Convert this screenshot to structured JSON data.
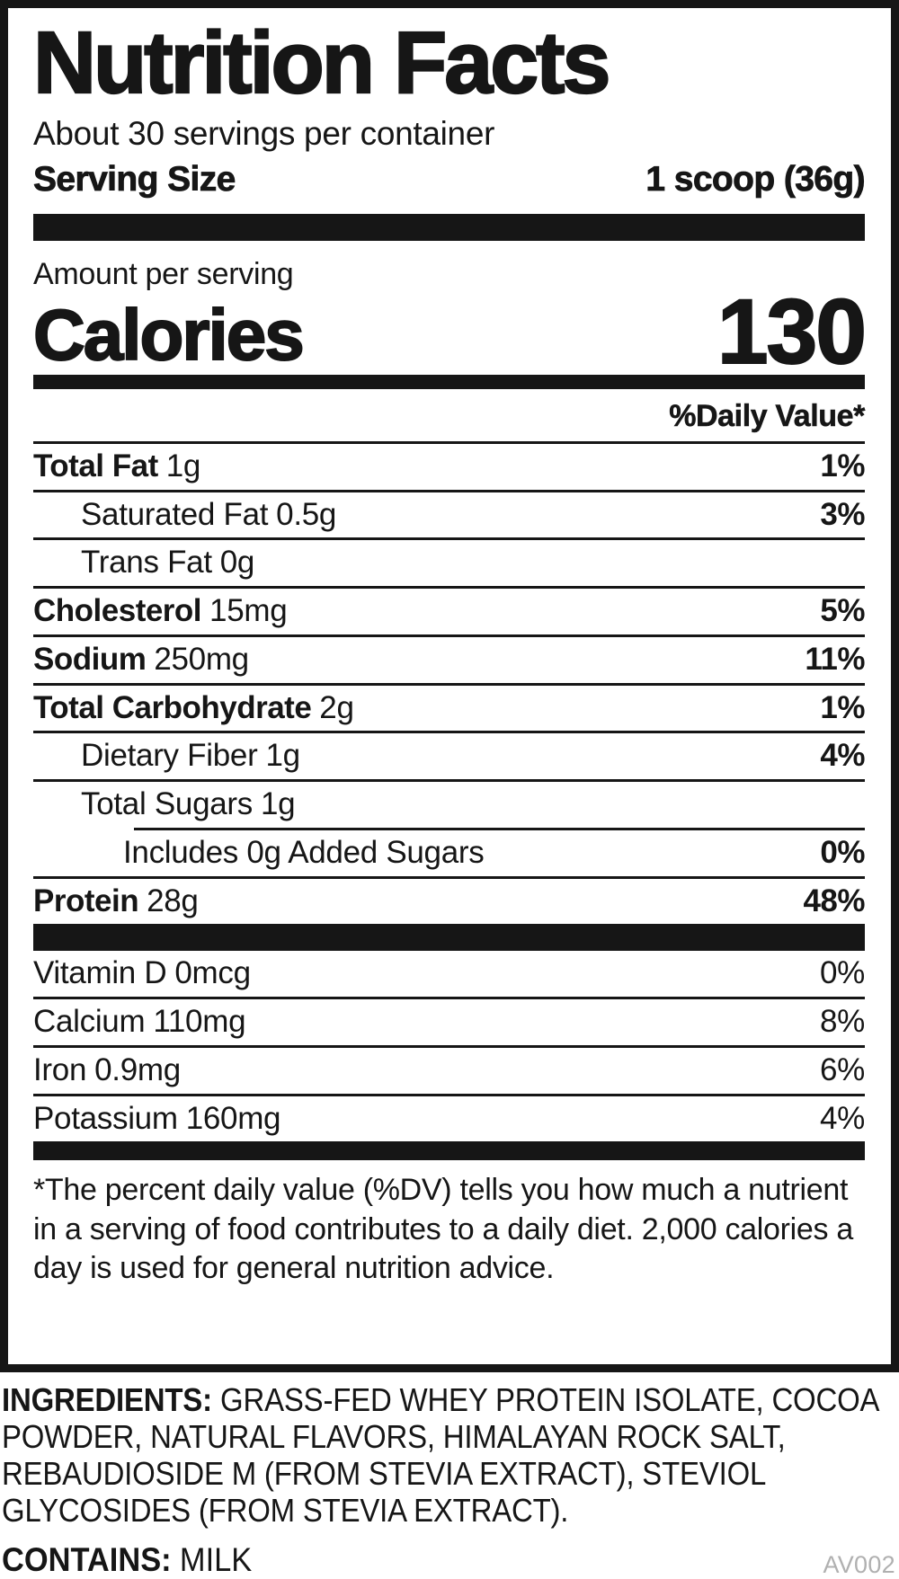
{
  "colors": {
    "ink": "#161616",
    "code_gray": "#b0b0b0"
  },
  "label": {
    "title": "Nutrition Facts",
    "servings_per_container": "About 30 servings per container",
    "serving_size_label": "Serving Size",
    "serving_size_value": "1 scoop (36g)",
    "amount_per_serving": "Amount per serving",
    "calories_label": "Calories",
    "calories_value": "130",
    "daily_value_header": "%Daily Value*",
    "rows": [
      {
        "name": "Total Fat",
        "amount": "1g",
        "dv": "1%"
      },
      {
        "name": "Saturated Fat",
        "amount": "0.5g",
        "dv": "3%"
      },
      {
        "name": "Trans Fat",
        "amount": "0g",
        "dv": ""
      },
      {
        "name": "Cholesterol",
        "amount": "15mg",
        "dv": "5%"
      },
      {
        "name": "Sodium",
        "amount": "250mg",
        "dv": "11%"
      },
      {
        "name": "Total Carbohydrate",
        "amount": "2g",
        "dv": "1%"
      },
      {
        "name": "Dietary Fiber",
        "amount": "1g",
        "dv": "4%"
      },
      {
        "name": "Total Sugars",
        "amount": "1g",
        "dv": ""
      },
      {
        "name": "Includes 0g Added Sugars",
        "amount": "",
        "dv": "0%"
      },
      {
        "name": "Protein",
        "amount": "28g",
        "dv": "48%"
      }
    ],
    "vitamins": [
      {
        "name": "Vitamin D",
        "amount": "0mcg",
        "dv": "0%"
      },
      {
        "name": "Calcium",
        "amount": "110mg",
        "dv": "8%"
      },
      {
        "name": "Iron",
        "amount": "0.9mg",
        "dv": "6%"
      },
      {
        "name": "Potassium",
        "amount": "160mg",
        "dv": "4%"
      }
    ],
    "footnote": "*The percent daily value (%DV) tells you how much a nutrient in a serving of food contributes to a daily diet. 2,000 calories a day is used for general nutrition advice."
  },
  "ingredients": {
    "label": "INGREDIENTS:",
    "text": "GRASS-FED WHEY PROTEIN ISOLATE, COCOA POWDER, NATURAL FLAVORS, HIMALAYAN ROCK SALT, REBAUDIOSIDE M (FROM STEVIA EXTRACT), STEVIOL GLYCOSIDES (FROM STEVIA EXTRACT)."
  },
  "contains": {
    "label": "CONTAINS:",
    "value": "MILK"
  },
  "code": "AV002"
}
